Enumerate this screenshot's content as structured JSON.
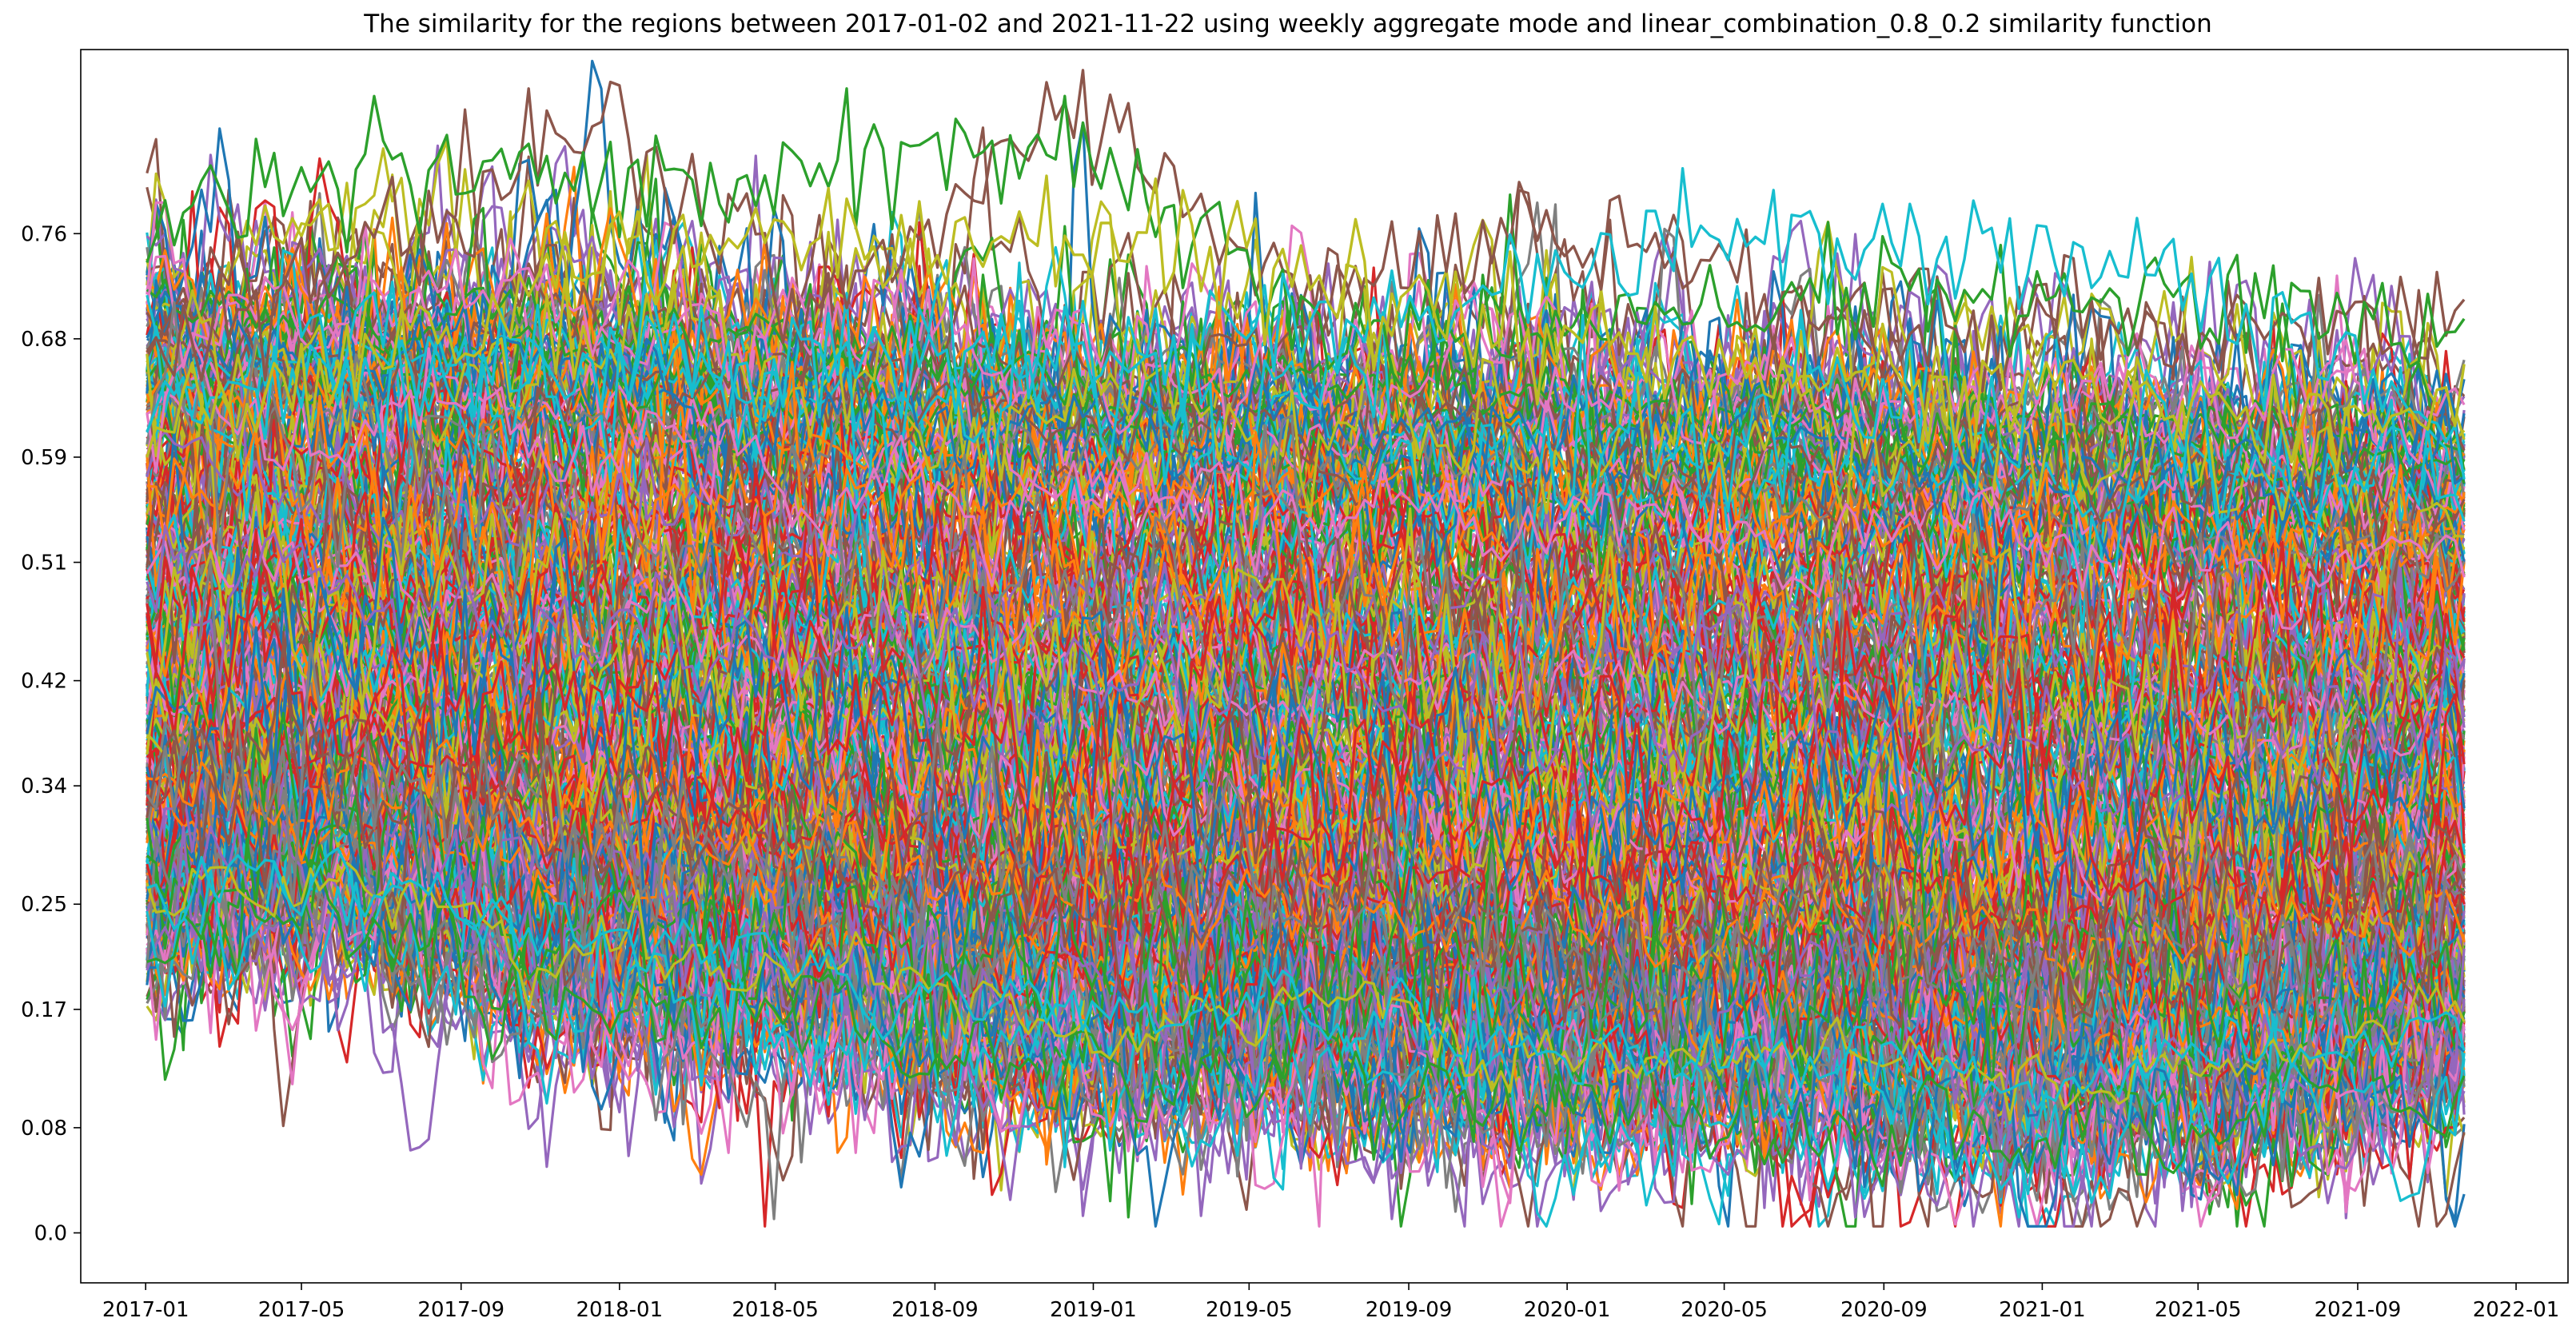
{
  "chart_data": {
    "type": "line",
    "title": "The similarity for the regions between 2017-01-02 and 2021-11-22 using weekly aggregate mode and linear_combination_0.8_0.2 similarity function",
    "xlabel": "",
    "ylabel": "",
    "x_start": "2017-01-02",
    "x_end": "2021-11-22",
    "x_step": "weekly",
    "x_ticks": [
      "2017-01",
      "2017-05",
      "2017-09",
      "2018-01",
      "2018-05",
      "2018-09",
      "2019-01",
      "2019-05",
      "2019-09",
      "2020-01",
      "2020-05",
      "2020-09",
      "2021-01",
      "2021-05",
      "2021-09",
      "2022-01"
    ],
    "y_ticks": [
      0.0,
      0.08,
      0.17,
      0.25,
      0.34,
      0.42,
      0.51,
      0.59,
      0.68,
      0.76
    ],
    "y_tick_labels": [
      "0.0",
      "0.08",
      "0.17",
      "0.25",
      "0.34",
      "0.42",
      "0.51",
      "0.59",
      "0.68",
      "0.76"
    ],
    "xlim": [
      "2016-11-12",
      "2022-02-10"
    ],
    "ylim": [
      -0.038,
      0.9
    ],
    "legend": "none",
    "grid": false,
    "palette": [
      "#1f77b4",
      "#ff7f0e",
      "#2ca02c",
      "#d62728",
      "#9467bd",
      "#8c564b",
      "#e377c2",
      "#7f7f7f",
      "#bcbd22",
      "#17becf"
    ],
    "series_count": 400,
    "highlight_series": [
      {
        "color": "#8c564b",
        "values_by_date": [
          [
            "2017-01-02",
            0.7
          ],
          [
            "2017-08-07",
            0.79
          ],
          [
            "2017-12-04",
            0.87
          ],
          [
            "2018-06-04",
            0.71
          ],
          [
            "2018-12-24",
            0.88
          ],
          [
            "2019-06-10",
            0.73
          ],
          [
            "2019-12-30",
            0.78
          ],
          [
            "2020-09-07",
            0.7
          ],
          [
            "2021-04-05",
            0.72
          ],
          [
            "2021-11-22",
            0.7
          ]
        ]
      },
      {
        "color": "#2ca02c",
        "values_by_date": [
          [
            "2017-01-02",
            0.78
          ],
          [
            "2017-03-20",
            0.82
          ],
          [
            "2017-12-11",
            0.82
          ],
          [
            "2018-12-24",
            0.85
          ],
          [
            "2019-07-01",
            0.7
          ],
          [
            "2020-11-30",
            0.74
          ],
          [
            "2021-11-22",
            0.7
          ]
        ]
      },
      {
        "color": "#17becf",
        "values_by_date": [
          [
            "2017-01-02",
            0.66
          ],
          [
            "2019-01-07",
            0.69
          ],
          [
            "2020-06-08",
            0.78
          ],
          [
            "2021-05-03",
            0.75
          ],
          [
            "2021-11-22",
            0.62
          ]
        ]
      },
      {
        "color": "#bcbd22",
        "values_by_date": [
          [
            "2017-01-02",
            0.62
          ],
          [
            "2017-12-11",
            0.76
          ],
          [
            "2018-12-24",
            0.79
          ],
          [
            "2020-06-01",
            0.67
          ],
          [
            "2021-11-22",
            0.64
          ]
        ]
      }
    ],
    "bands": [
      {
        "date": "2017-01-02",
        "low": 0.21,
        "high": 0.73
      },
      {
        "date": "2017-06-01",
        "low": 0.23,
        "high": 0.72
      },
      {
        "date": "2017-12-01",
        "low": 0.16,
        "high": 0.72
      },
      {
        "date": "2018-06-01",
        "low": 0.15,
        "high": 0.7
      },
      {
        "date": "2019-01-01",
        "low": 0.11,
        "high": 0.68
      },
      {
        "date": "2019-06-01",
        "low": 0.11,
        "high": 0.68
      },
      {
        "date": "2020-01-01",
        "low": 0.09,
        "high": 0.67
      },
      {
        "date": "2020-06-01",
        "low": 0.09,
        "high": 0.66
      },
      {
        "date": "2021-01-01",
        "low": 0.07,
        "high": 0.65
      },
      {
        "date": "2021-06-01",
        "low": 0.08,
        "high": 0.64
      },
      {
        "date": "2021-11-22",
        "low": 0.12,
        "high": 0.63
      }
    ]
  }
}
